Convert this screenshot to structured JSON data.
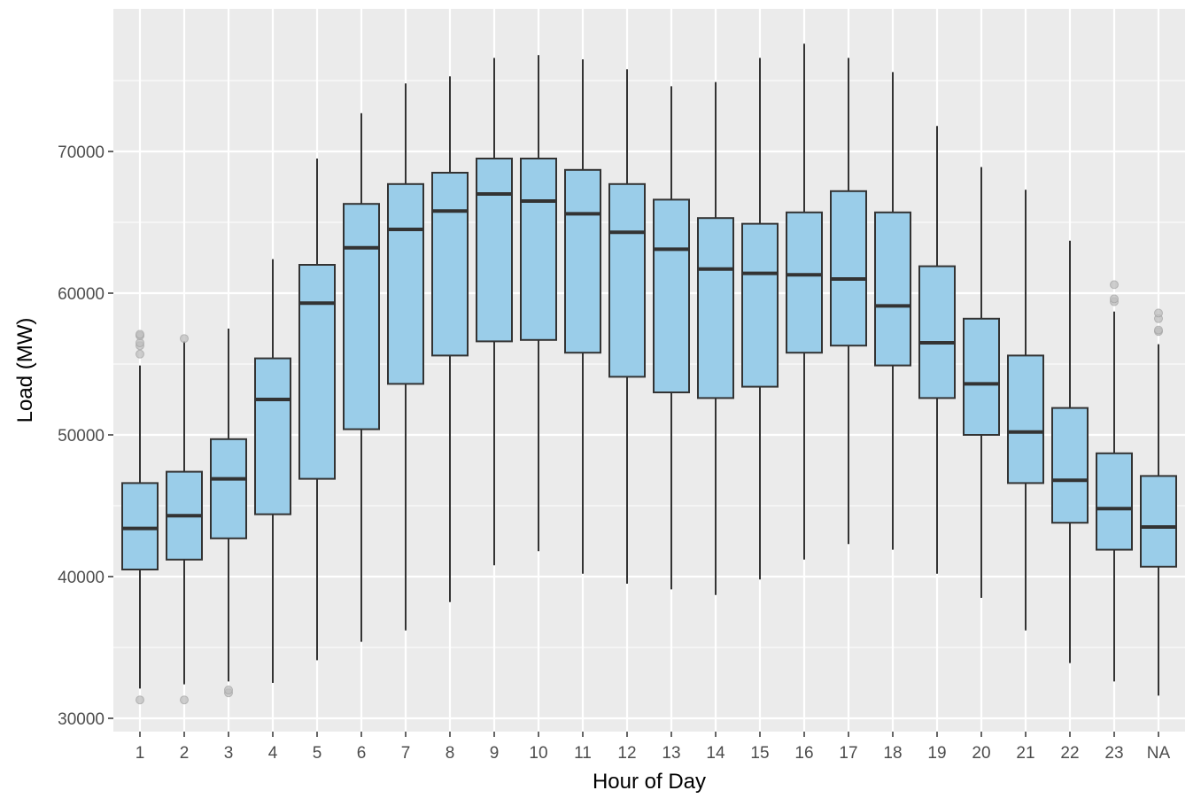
{
  "chart_data": {
    "type": "boxplot",
    "xlabel": "Hour of Day",
    "ylabel": "Load (MW)",
    "ylim": [
      29000,
      79000
    ],
    "y_ticks": [
      30000,
      40000,
      50000,
      60000,
      70000
    ],
    "grid": true,
    "colors": {
      "panel_background": "#ebebeb",
      "grid": "#ffffff",
      "box_fill": "#9acde9",
      "box_stroke": "#333333",
      "outlier": "#bdbdbd"
    },
    "categories": [
      "1",
      "2",
      "3",
      "4",
      "5",
      "6",
      "7",
      "8",
      "9",
      "10",
      "11",
      "12",
      "13",
      "14",
      "15",
      "16",
      "17",
      "18",
      "19",
      "20",
      "21",
      "22",
      "23",
      "NA"
    ],
    "boxes": [
      {
        "whisker_low": 32100,
        "q1": 40500,
        "median": 43400,
        "q3": 46600,
        "whisker_high": 54900,
        "outliers": [
          31300,
          55700,
          56300,
          56500,
          57000,
          57100
        ]
      },
      {
        "whisker_low": 32400,
        "q1": 41200,
        "median": 44300,
        "q3": 47400,
        "whisker_high": 56600,
        "outliers": [
          31300,
          56800
        ]
      },
      {
        "whisker_low": 32600,
        "q1": 42700,
        "median": 46900,
        "q3": 49700,
        "whisker_high": 57500,
        "outliers": [
          31800,
          32000
        ]
      },
      {
        "whisker_low": 32500,
        "q1": 44400,
        "median": 52500,
        "q3": 55400,
        "whisker_high": 62400,
        "outliers": []
      },
      {
        "whisker_low": 34100,
        "q1": 46900,
        "median": 59300,
        "q3": 62000,
        "whisker_high": 69500,
        "outliers": []
      },
      {
        "whisker_low": 35400,
        "q1": 50400,
        "median": 63200,
        "q3": 66300,
        "whisker_high": 72700,
        "outliers": []
      },
      {
        "whisker_low": 36200,
        "q1": 53600,
        "median": 64500,
        "q3": 67700,
        "whisker_high": 74800,
        "outliers": []
      },
      {
        "whisker_low": 38200,
        "q1": 55600,
        "median": 65800,
        "q3": 68500,
        "whisker_high": 75300,
        "outliers": []
      },
      {
        "whisker_low": 40800,
        "q1": 56600,
        "median": 67000,
        "q3": 69500,
        "whisker_high": 76600,
        "outliers": []
      },
      {
        "whisker_low": 41800,
        "q1": 56700,
        "median": 66500,
        "q3": 69500,
        "whisker_high": 76800,
        "outliers": []
      },
      {
        "whisker_low": 40200,
        "q1": 55800,
        "median": 65600,
        "q3": 68700,
        "whisker_high": 76500,
        "outliers": []
      },
      {
        "whisker_low": 39500,
        "q1": 54100,
        "median": 64300,
        "q3": 67700,
        "whisker_high": 75800,
        "outliers": []
      },
      {
        "whisker_low": 39100,
        "q1": 53000,
        "median": 63100,
        "q3": 66600,
        "whisker_high": 74600,
        "outliers": []
      },
      {
        "whisker_low": 38700,
        "q1": 52600,
        "median": 61700,
        "q3": 65300,
        "whisker_high": 74900,
        "outliers": []
      },
      {
        "whisker_low": 39800,
        "q1": 53400,
        "median": 61400,
        "q3": 64900,
        "whisker_high": 76600,
        "outliers": []
      },
      {
        "whisker_low": 41200,
        "q1": 55800,
        "median": 61300,
        "q3": 65700,
        "whisker_high": 77600,
        "outliers": []
      },
      {
        "whisker_low": 42300,
        "q1": 56300,
        "median": 61000,
        "q3": 67200,
        "whisker_high": 76600,
        "outliers": []
      },
      {
        "whisker_low": 41900,
        "q1": 54900,
        "median": 59100,
        "q3": 65700,
        "whisker_high": 75600,
        "outliers": []
      },
      {
        "whisker_low": 40200,
        "q1": 52600,
        "median": 56500,
        "q3": 61900,
        "whisker_high": 71800,
        "outliers": []
      },
      {
        "whisker_low": 38500,
        "q1": 50000,
        "median": 53600,
        "q3": 58200,
        "whisker_high": 68900,
        "outliers": []
      },
      {
        "whisker_low": 36200,
        "q1": 46600,
        "median": 50200,
        "q3": 55600,
        "whisker_high": 67300,
        "outliers": []
      },
      {
        "whisker_low": 33900,
        "q1": 43800,
        "median": 46800,
        "q3": 51900,
        "whisker_high": 63700,
        "outliers": []
      },
      {
        "whisker_low": 32600,
        "q1": 41900,
        "median": 44800,
        "q3": 48700,
        "whisker_high": 58700,
        "outliers": [
          59400,
          59600,
          60600
        ]
      },
      {
        "whisker_low": 31600,
        "q1": 40700,
        "median": 43500,
        "q3": 47100,
        "whisker_high": 56400,
        "outliers": [
          57300,
          57400,
          58200,
          58600
        ]
      }
    ]
  }
}
